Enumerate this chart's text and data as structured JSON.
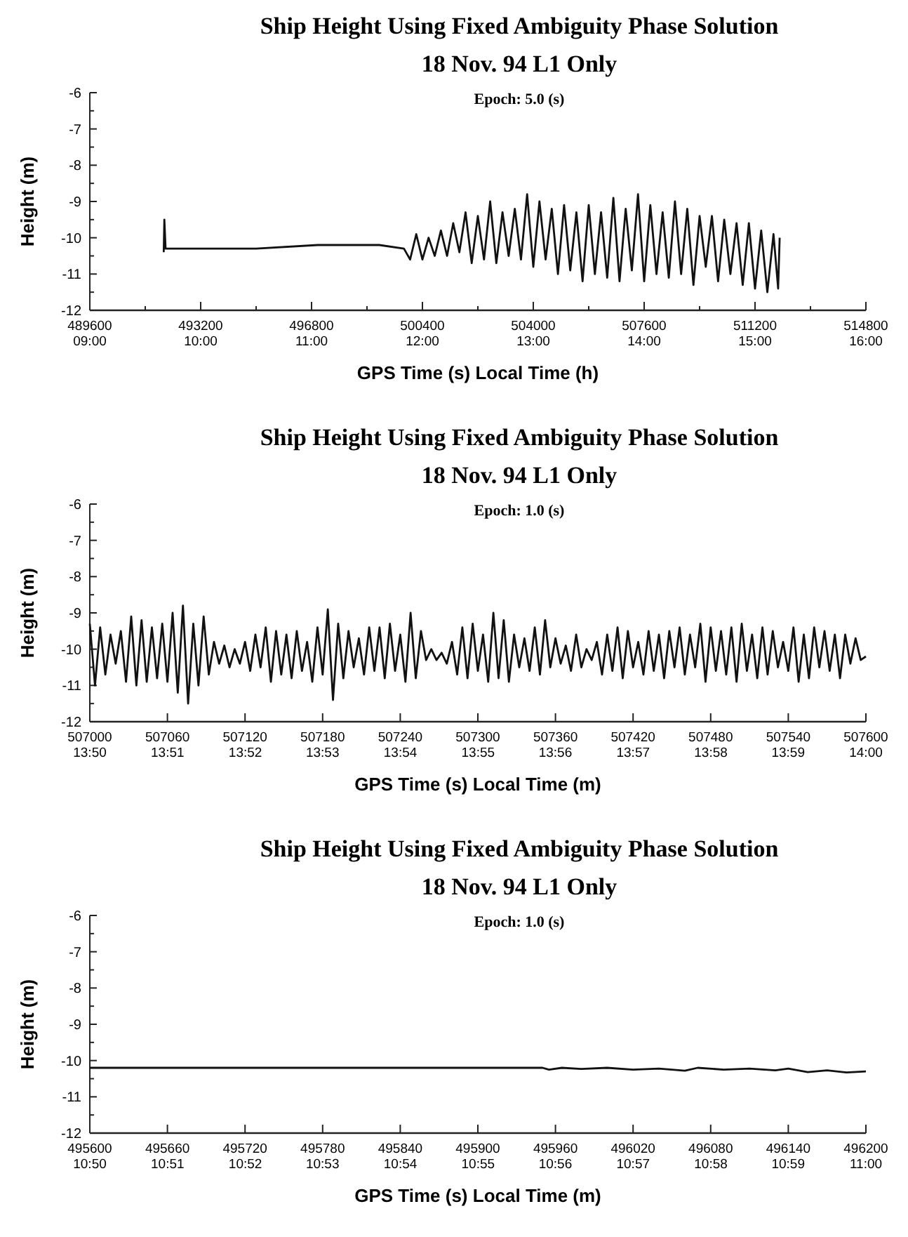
{
  "chart_data": [
    {
      "type": "line",
      "title": "Ship Height Using Fixed Ambiguity Phase Solution",
      "subtitle": "18 Nov. 94 L1 Only",
      "annotations": [
        "Epoch: 5.0 (s)"
      ],
      "xlabel": "GPS Time (s) Local Time (h)",
      "ylabel": "Height (m)",
      "xlim": [
        489600,
        514800
      ],
      "ylim": [
        -12,
        -6
      ],
      "x2lim": [
        9,
        16
      ],
      "x2ticks": [
        {
          "value": 9,
          "label": "09:00"
        },
        {
          "value": 10,
          "label": "10:00"
        },
        {
          "value": 11,
          "label": "11:00"
        },
        {
          "value": 12,
          "label": "12:00"
        },
        {
          "value": 13,
          "label": "13:00"
        },
        {
          "value": 14,
          "label": "14:00"
        },
        {
          "value": 15,
          "label": "15:00"
        },
        {
          "value": 16,
          "label": "16:00"
        }
      ],
      "xticks": [
        489600,
        493200,
        496800,
        500400,
        504000,
        507600,
        511200,
        514800,
        {
          "value": 491400,
          "label": null
        },
        {
          "value": 495000,
          "label": null
        },
        {
          "value": 498600,
          "label": null
        },
        {
          "value": 502200,
          "label": null
        },
        {
          "value": 505800,
          "label": null
        },
        {
          "value": 509400,
          "label": null
        },
        {
          "value": 513000,
          "label": null
        }
      ],
      "yticks": [
        -12,
        -11,
        -10,
        -9,
        -8,
        -7,
        -6,
        {
          "value": -11.5,
          "label": null
        },
        {
          "value": -10.5,
          "label": null
        },
        {
          "value": -9.5,
          "label": null
        },
        {
          "value": -8.5,
          "label": null
        },
        {
          "value": -7.5,
          "label": null
        },
        {
          "value": -6.5,
          "label": null
        }
      ],
      "series": [
        {
          "color": "#111111",
          "x": [
            492000,
            492020,
            492060,
            493500,
            495000,
            497000,
            499000,
            499800,
            500000,
            500200,
            500400,
            500600,
            500800,
            501000,
            501200,
            501400,
            501600,
            501800,
            502000,
            502200,
            502400,
            502600,
            502800,
            503000,
            503200,
            503400,
            503600,
            503800,
            504000,
            504200,
            504400,
            504600,
            504800,
            505000,
            505200,
            505400,
            505600,
            505800,
            506000,
            506200,
            506400,
            506600,
            506800,
            507000,
            507200,
            507400,
            507600,
            507800,
            508000,
            508200,
            508400,
            508600,
            508800,
            509000,
            509200,
            509400,
            509600,
            509800,
            510000,
            510200,
            510400,
            510600,
            510800,
            511000,
            511200,
            511400,
            511600,
            511800,
            511950,
            512000
          ],
          "values": [
            -10.4,
            -9.5,
            -10.3,
            -10.3,
            -10.3,
            -10.2,
            -10.2,
            -10.3,
            -10.6,
            -9.9,
            -10.6,
            -10.0,
            -10.5,
            -9.8,
            -10.5,
            -9.6,
            -10.4,
            -9.3,
            -10.7,
            -9.4,
            -10.6,
            -9.0,
            -10.7,
            -9.3,
            -10.5,
            -9.2,
            -10.6,
            -8.8,
            -10.8,
            -9.0,
            -10.6,
            -9.2,
            -11.0,
            -9.1,
            -10.9,
            -9.3,
            -11.2,
            -9.1,
            -11.0,
            -9.3,
            -11.1,
            -8.9,
            -11.2,
            -9.2,
            -10.9,
            -8.8,
            -11.2,
            -9.1,
            -11.0,
            -9.3,
            -11.1,
            -9.0,
            -11.0,
            -9.2,
            -11.3,
            -9.4,
            -10.8,
            -9.4,
            -11.2,
            -9.5,
            -11.0,
            -9.6,
            -11.3,
            -9.6,
            -11.4,
            -9.8,
            -11.5,
            -9.9,
            -11.4,
            -10.0
          ]
        }
      ]
    },
    {
      "type": "line",
      "title": "Ship Height Using Fixed Ambiguity Phase Solution",
      "subtitle": "18 Nov. 94 L1 Only",
      "annotations": [
        "Epoch: 1.0 (s)"
      ],
      "xlabel": "GPS Time (s) Local Time (m)",
      "ylabel": "Height (m)",
      "xlim": [
        507000,
        507600
      ],
      "ylim": [
        -12,
        -6
      ],
      "x2lim": [
        13.8333,
        14
      ],
      "x2ticks": [
        {
          "value": 13.8333,
          "label": "13:50"
        },
        {
          "value": 13.85,
          "label": "13:51"
        },
        {
          "value": 13.8667,
          "label": "13:52"
        },
        {
          "value": 13.8833,
          "label": "13:53"
        },
        {
          "value": 13.9,
          "label": "13:54"
        },
        {
          "value": 13.9167,
          "label": "13:55"
        },
        {
          "value": 13.9333,
          "label": "13:56"
        },
        {
          "value": 13.95,
          "label": "13:57"
        },
        {
          "value": 13.9667,
          "label": "13:58"
        },
        {
          "value": 13.9833,
          "label": "13:59"
        },
        {
          "value": 14,
          "label": "14:00"
        }
      ],
      "xticks": [
        507000,
        507060,
        507120,
        507180,
        507240,
        507300,
        507360,
        507420,
        507480,
        507540,
        507600
      ],
      "yticks": [
        -12,
        -11,
        -10,
        -9,
        -8,
        -7,
        -6,
        {
          "value": -11.5,
          "label": null
        },
        {
          "value": -10.5,
          "label": null
        },
        {
          "value": -9.5,
          "label": null
        },
        {
          "value": -8.5,
          "label": null
        },
        {
          "value": -7.5,
          "label": null
        },
        {
          "value": -6.5,
          "label": null
        }
      ],
      "series": [
        {
          "color": "#111111",
          "x": [
            507000,
            507004,
            507008,
            507012,
            507016,
            507020,
            507024,
            507028,
            507032,
            507036,
            507040,
            507044,
            507048,
            507052,
            507056,
            507060,
            507064,
            507068,
            507072,
            507076,
            507080,
            507084,
            507088,
            507092,
            507096,
            507100,
            507104,
            507108,
            507112,
            507116,
            507120,
            507124,
            507128,
            507132,
            507136,
            507140,
            507144,
            507148,
            507152,
            507156,
            507160,
            507164,
            507168,
            507172,
            507176,
            507180,
            507184,
            507188,
            507192,
            507196,
            507200,
            507204,
            507208,
            507212,
            507216,
            507220,
            507224,
            507228,
            507232,
            507236,
            507240,
            507244,
            507248,
            507252,
            507256,
            507260,
            507264,
            507268,
            507272,
            507276,
            507280,
            507284,
            507288,
            507292,
            507296,
            507300,
            507304,
            507308,
            507312,
            507316,
            507320,
            507324,
            507328,
            507332,
            507336,
            507340,
            507344,
            507348,
            507352,
            507356,
            507360,
            507364,
            507368,
            507372,
            507376,
            507380,
            507384,
            507388,
            507392,
            507396,
            507400,
            507404,
            507408,
            507412,
            507416,
            507420,
            507424,
            507428,
            507432,
            507436,
            507440,
            507444,
            507448,
            507452,
            507456,
            507460,
            507464,
            507468,
            507472,
            507476,
            507480,
            507484,
            507488,
            507492,
            507496,
            507500,
            507504,
            507508,
            507512,
            507516,
            507520,
            507524,
            507528,
            507532,
            507536,
            507540,
            507544,
            507548,
            507552,
            507556,
            507560,
            507564,
            507568,
            507572,
            507576,
            507580,
            507584,
            507588,
            507592,
            507596,
            507600
          ],
          "values": [
            -9.3,
            -11.0,
            -9.4,
            -10.7,
            -9.6,
            -10.4,
            -9.5,
            -10.9,
            -9.1,
            -11.0,
            -9.2,
            -10.9,
            -9.4,
            -10.8,
            -9.3,
            -10.9,
            -9.0,
            -11.2,
            -8.8,
            -11.5,
            -9.3,
            -11.0,
            -9.1,
            -10.7,
            -9.8,
            -10.4,
            -9.9,
            -10.5,
            -10.0,
            -10.4,
            -9.8,
            -10.6,
            -9.6,
            -10.5,
            -9.4,
            -10.9,
            -9.5,
            -10.7,
            -9.6,
            -10.8,
            -9.5,
            -10.6,
            -9.8,
            -10.9,
            -9.4,
            -10.7,
            -8.9,
            -11.4,
            -9.3,
            -10.8,
            -9.5,
            -10.5,
            -9.7,
            -10.7,
            -9.4,
            -10.6,
            -9.4,
            -10.8,
            -9.3,
            -10.6,
            -9.6,
            -10.9,
            -9.0,
            -10.8,
            -9.5,
            -10.3,
            -10.0,
            -10.3,
            -10.1,
            -10.4,
            -9.8,
            -10.7,
            -9.4,
            -10.8,
            -9.3,
            -10.6,
            -9.6,
            -10.9,
            -9.0,
            -10.8,
            -9.2,
            -10.9,
            -9.6,
            -10.5,
            -9.7,
            -10.6,
            -9.4,
            -10.7,
            -9.2,
            -10.5,
            -9.7,
            -10.4,
            -9.9,
            -10.6,
            -9.6,
            -10.5,
            -10.0,
            -10.3,
            -9.8,
            -10.7,
            -9.6,
            -10.6,
            -9.4,
            -10.8,
            -9.5,
            -10.5,
            -9.8,
            -10.7,
            -9.5,
            -10.6,
            -9.6,
            -10.8,
            -9.5,
            -10.5,
            -9.4,
            -10.7,
            -9.6,
            -10.5,
            -9.3,
            -10.9,
            -9.4,
            -10.6,
            -9.5,
            -10.7,
            -9.4,
            -10.9,
            -9.3,
            -10.6,
            -9.6,
            -10.8,
            -9.4,
            -10.7,
            -9.5,
            -10.5,
            -9.8,
            -10.6,
            -9.4,
            -10.9,
            -9.6,
            -10.8,
            -9.4,
            -10.5,
            -9.5,
            -10.6,
            -9.6,
            -10.8,
            -9.6,
            -10.4,
            -9.7,
            -10.3,
            -10.2
          ]
        }
      ]
    },
    {
      "type": "line",
      "title": "Ship Height Using Fixed Ambiguity Phase Solution",
      "subtitle": "18 Nov. 94 L1 Only",
      "annotations": [
        "Epoch: 1.0 (s)"
      ],
      "xlabel": "GPS Time (s) Local Time (m)",
      "ylabel": "Height (m)",
      "xlim": [
        495600,
        496200
      ],
      "ylim": [
        -12,
        -6
      ],
      "x2lim": [
        10.8333,
        11
      ],
      "x2ticks": [
        {
          "value": 10.8333,
          "label": "10:50"
        },
        {
          "value": 10.85,
          "label": "10:51"
        },
        {
          "value": 10.8667,
          "label": "10:52"
        },
        {
          "value": 10.8833,
          "label": "10:53"
        },
        {
          "value": 10.9,
          "label": "10:54"
        },
        {
          "value": 10.9167,
          "label": "10:55"
        },
        {
          "value": 10.9333,
          "label": "10:56"
        },
        {
          "value": 10.95,
          "label": "10:57"
        },
        {
          "value": 10.9667,
          "label": "10:58"
        },
        {
          "value": 10.9833,
          "label": "10:59"
        },
        {
          "value": 11,
          "label": "11:00"
        }
      ],
      "xticks": [
        495600,
        495660,
        495720,
        495780,
        495840,
        495900,
        495960,
        496020,
        496080,
        496140,
        496200
      ],
      "yticks": [
        -12,
        -11,
        -10,
        -9,
        -8,
        -7,
        -6,
        {
          "value": -11.5,
          "label": null
        },
        {
          "value": -10.5,
          "label": null
        },
        {
          "value": -9.5,
          "label": null
        },
        {
          "value": -8.5,
          "label": null
        },
        {
          "value": -7.5,
          "label": null
        },
        {
          "value": -6.5,
          "label": null
        }
      ],
      "series": [
        {
          "color": "#111111",
          "x": [
            495600,
            495900,
            495950,
            495955,
            495965,
            495980,
            496000,
            496020,
            496040,
            496060,
            496070,
            496090,
            496110,
            496130,
            496140,
            496155,
            496170,
            496185,
            496200
          ],
          "values": [
            -10.2,
            -10.2,
            -10.2,
            -10.25,
            -10.2,
            -10.23,
            -10.2,
            -10.25,
            -10.22,
            -10.28,
            -10.2,
            -10.25,
            -10.22,
            -10.27,
            -10.22,
            -10.32,
            -10.27,
            -10.33,
            -10.3
          ]
        }
      ]
    }
  ]
}
